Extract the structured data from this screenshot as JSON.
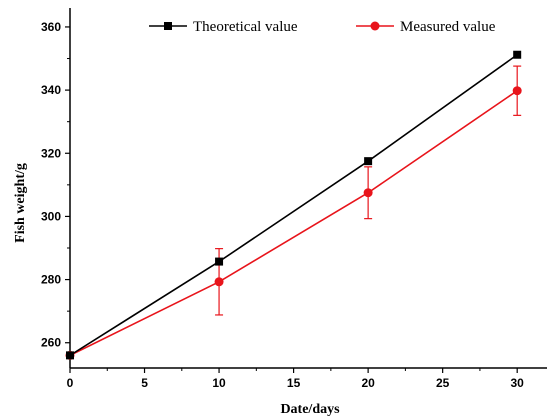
{
  "chart_data": {
    "type": "line",
    "xlabel": "Date/days",
    "ylabel": "Fish weight/g",
    "xlim": [
      0,
      32
    ],
    "ylim": [
      252,
      366
    ],
    "xticks": [
      0,
      5,
      10,
      15,
      20,
      25,
      30
    ],
    "yticks": [
      260,
      280,
      300,
      320,
      340,
      360
    ],
    "grid": false,
    "legend_position": "top",
    "x": [
      0,
      10,
      20,
      30
    ],
    "series": [
      {
        "name": "Theoretical value",
        "values": [
          256,
          285.7,
          317.5,
          351.2
        ],
        "color": "#000000",
        "marker": "square"
      },
      {
        "name": "Measured value",
        "values": [
          256,
          279.3,
          307.5,
          339.8
        ],
        "errors": [
          0,
          10.5,
          8.2,
          7.8
        ],
        "color": "#e8141b",
        "marker": "circle"
      }
    ]
  }
}
